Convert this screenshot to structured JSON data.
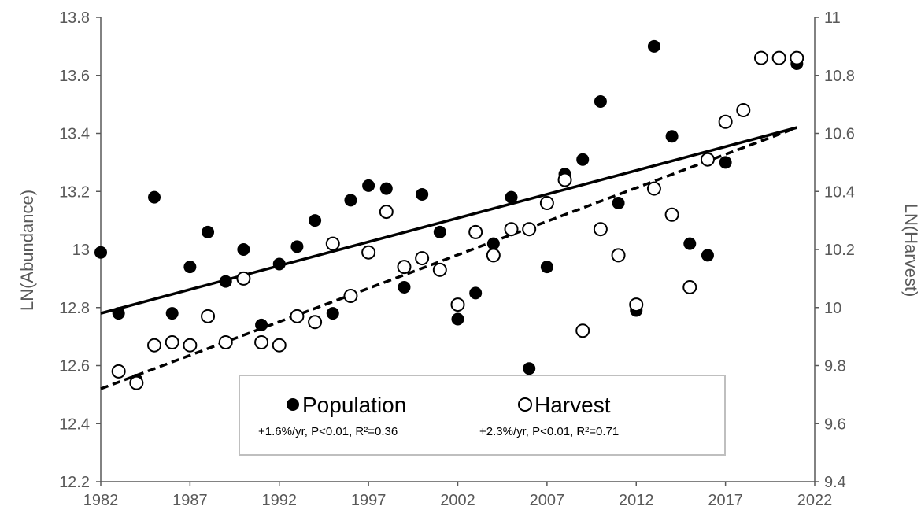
{
  "chart_data": {
    "type": "scatter",
    "title": "",
    "xlabel": "",
    "ylabel": "LN(Abundance)",
    "y2label": "LN(Harvest)",
    "xlim": [
      1982,
      2022
    ],
    "ylim": [
      12.2,
      13.8
    ],
    "y2lim": [
      9.4,
      11.0
    ],
    "x_ticks": [
      "1982",
      "1987",
      "1992",
      "1997",
      "2002",
      "2007",
      "2012",
      "2017",
      "2022"
    ],
    "y_ticks": [
      "12.2",
      "12.4",
      "12.6",
      "12.8",
      "13",
      "13.2",
      "13.4",
      "13.6",
      "13.8"
    ],
    "y2_ticks": [
      "9.4",
      "9.6",
      "9.8",
      "10",
      "10.2",
      "10.4",
      "10.6",
      "10.8",
      "11"
    ],
    "grid": false,
    "legend": {
      "population_label": "Population",
      "harvest_label": "Harvest",
      "population_stat": "+1.6%/yr, P<0.01, R²=0.36",
      "harvest_stat": "+2.3%/yr, P<0.01, R²=0.71",
      "position": "bottom-center"
    },
    "series": [
      {
        "name": "Population",
        "axis": "left",
        "marker": "filled-circle",
        "color": "#000000",
        "x": [
          1982,
          1983,
          1984,
          1985,
          1986,
          1987,
          1988,
          1989,
          1990,
          1991,
          1992,
          1993,
          1994,
          1995,
          1996,
          1997,
          1998,
          1999,
          2000,
          2001,
          2002,
          2003,
          2004,
          2005,
          2006,
          2007,
          2008,
          2009,
          2010,
          2011,
          2012,
          2013,
          2014,
          2015,
          2016,
          2017,
          2021
        ],
        "y": [
          12.99,
          12.78,
          12.55,
          13.18,
          12.78,
          12.94,
          13.06,
          12.89,
          13.0,
          12.74,
          12.95,
          13.01,
          13.1,
          12.78,
          13.17,
          13.22,
          13.21,
          12.87,
          13.19,
          13.06,
          12.76,
          12.85,
          13.02,
          13.18,
          12.59,
          12.94,
          13.26,
          13.31,
          13.51,
          13.16,
          12.79,
          13.7,
          13.39,
          13.02,
          12.98,
          13.3,
          13.64
        ],
        "trend": {
          "x": [
            1982,
            2021
          ],
          "y": [
            12.78,
            13.42
          ],
          "style": "solid"
        }
      },
      {
        "name": "Harvest",
        "axis": "right",
        "marker": "open-circle",
        "color": "#000000",
        "x": [
          1983,
          1984,
          1985,
          1986,
          1987,
          1988,
          1989,
          1990,
          1991,
          1992,
          1993,
          1994,
          1995,
          1996,
          1997,
          1998,
          1999,
          2000,
          2001,
          2002,
          2003,
          2004,
          2005,
          2006,
          2007,
          2008,
          2009,
          2010,
          2011,
          2012,
          2013,
          2014,
          2015,
          2016,
          2017,
          2018,
          2019,
          2020,
          2021
        ],
        "y": [
          9.78,
          9.74,
          9.87,
          9.88,
          9.87,
          9.97,
          9.88,
          10.1,
          9.88,
          9.87,
          9.97,
          9.95,
          10.22,
          10.04,
          10.19,
          10.33,
          10.14,
          10.17,
          10.13,
          10.01,
          10.26,
          10.18,
          10.27,
          10.27,
          10.36,
          10.44,
          9.92,
          10.27,
          10.18,
          10.01,
          10.41,
          10.32,
          10.07,
          10.51,
          10.64,
          10.68,
          10.86,
          10.86,
          10.86
        ],
        "trend": {
          "x": [
            1982,
            2021
          ],
          "y": [
            9.72,
            10.62
          ],
          "style": "dashed"
        }
      }
    ]
  }
}
